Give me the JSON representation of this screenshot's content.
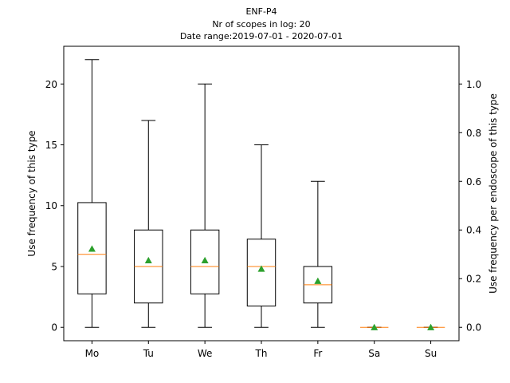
{
  "chart_data": {
    "type": "box",
    "title": [
      "ENF-P4",
      "Nr of scopes in log: 20",
      "Date range:2019-07-01 - 2020-07-01"
    ],
    "categories": [
      "Mo",
      "Tu",
      "We",
      "Th",
      "Fr",
      "Sa",
      "Su"
    ],
    "ylabel": "Use frequency of this type",
    "ylabel_right": "Use frequency per endoscope of this type",
    "ylim": [
      -1.1,
      23.1
    ],
    "ylim_right": [
      -0.055,
      1.155
    ],
    "yticks": [
      0,
      5,
      10,
      15,
      20
    ],
    "yticks_right": [
      0.0,
      0.2,
      0.4,
      0.6,
      0.8,
      1.0
    ],
    "yticks_right_labels": [
      "0.0",
      "0.2",
      "0.4",
      "0.6",
      "0.8",
      "1.0"
    ],
    "boxes": [
      {
        "category": "Mo",
        "whislo": 0,
        "q1": 2.75,
        "median": 6,
        "q3": 10.25,
        "whishi": 22,
        "mean": 6.45
      },
      {
        "category": "Tu",
        "whislo": 0,
        "q1": 2,
        "median": 5,
        "q3": 8,
        "whishi": 17,
        "mean": 5.5
      },
      {
        "category": "We",
        "whislo": 0,
        "q1": 2.75,
        "median": 5,
        "q3": 8,
        "whishi": 20,
        "mean": 5.5
      },
      {
        "category": "Th",
        "whislo": 0,
        "q1": 1.75,
        "median": 5,
        "q3": 7.25,
        "whishi": 15,
        "mean": 4.8
      },
      {
        "category": "Fr",
        "whislo": 0,
        "q1": 2,
        "median": 3.5,
        "q3": 5,
        "whishi": 12,
        "mean": 3.8
      },
      {
        "category": "Sa",
        "whislo": 0,
        "q1": 0,
        "median": 0,
        "q3": 0,
        "whishi": 0,
        "mean": 0
      },
      {
        "category": "Su",
        "whislo": 0,
        "q1": 0,
        "median": 0,
        "q3": 0,
        "whishi": 0,
        "mean": 0
      }
    ],
    "colors": {
      "box": "#000000",
      "median": "#ff7f0e",
      "mean": "#2ca02c"
    },
    "grid": false,
    "legend": "none"
  }
}
